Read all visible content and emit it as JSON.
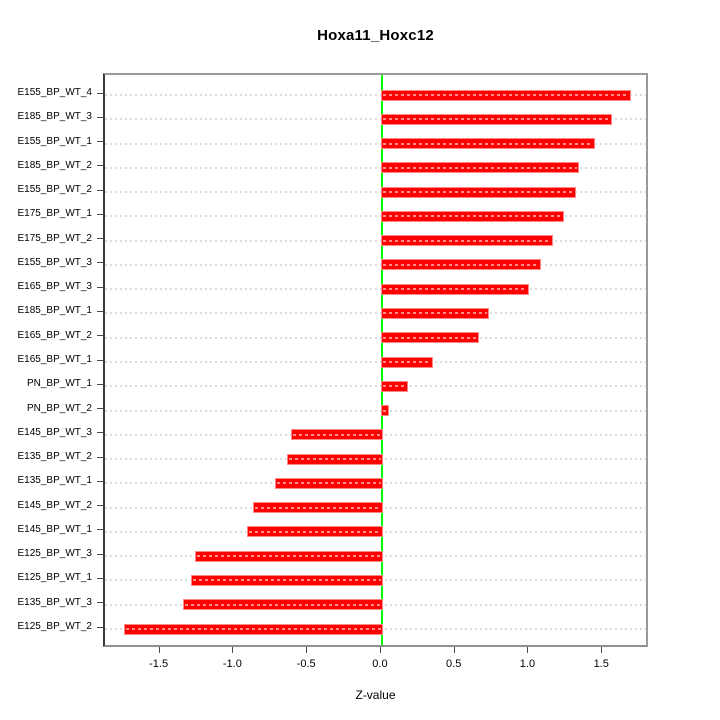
{
  "chart_data": {
    "type": "bar",
    "orientation": "horizontal",
    "title": "Hoxa11_Hoxc12",
    "xlabel": "Z-value",
    "ylabel": "",
    "categories": [
      "E155_BP_WT_4",
      "E185_BP_WT_3",
      "E155_BP_WT_1",
      "E185_BP_WT_2",
      "E155_BP_WT_2",
      "E175_BP_WT_1",
      "E175_BP_WT_2",
      "E155_BP_WT_3",
      "E165_BP_WT_3",
      "E185_BP_WT_1",
      "E165_BP_WT_2",
      "E165_BP_WT_1",
      "PN_BP_WT_1",
      "PN_BP_WT_2",
      "E145_BP_WT_3",
      "E135_BP_WT_2",
      "E135_BP_WT_1",
      "E145_BP_WT_2",
      "E145_BP_WT_1",
      "E125_BP_WT_3",
      "E125_BP_WT_1",
      "E135_BP_WT_3",
      "E125_BP_WT_2"
    ],
    "values": [
      1.68,
      1.55,
      1.44,
      1.33,
      1.31,
      1.23,
      1.15,
      1.07,
      0.99,
      0.72,
      0.65,
      0.34,
      0.17,
      0.04,
      -0.61,
      -0.64,
      -0.72,
      -0.87,
      -0.91,
      -1.26,
      -1.29,
      -1.34,
      -1.74
    ],
    "xlim": [
      -1.877,
      1.817
    ],
    "x_ticks": [
      -1.5,
      -1.0,
      -0.5,
      0.0,
      0.5,
      1.0,
      1.5
    ],
    "x_tick_labels": [
      "-1.5",
      "-1.0",
      "-0.5",
      "0.0",
      "0.5",
      "1.0",
      "1.5"
    ],
    "bar_color": "#ff0000",
    "bar_border_color": "#ff8888",
    "zero_line_color": "#00ff00",
    "grid": true,
    "grid_style": "dotted",
    "grid_color": "#dcdcdc",
    "legend_position": "none"
  }
}
